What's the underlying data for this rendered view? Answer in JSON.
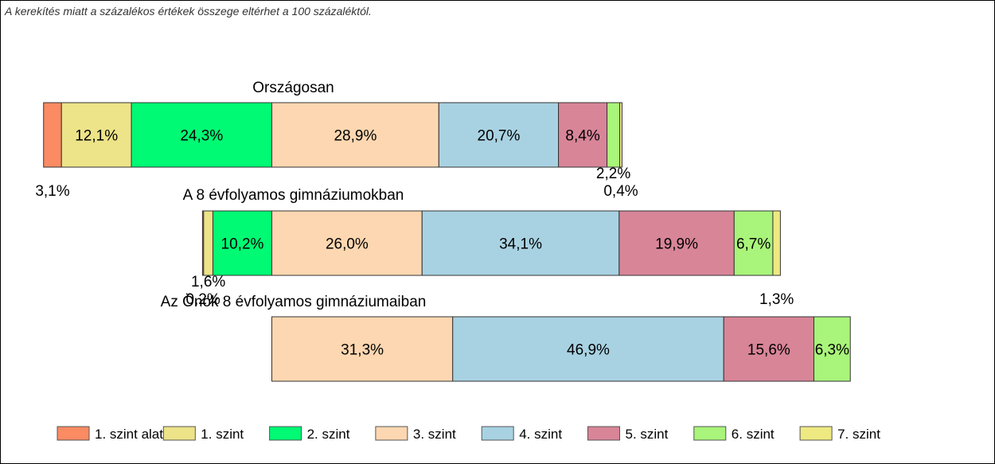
{
  "note": "A kerekítés miatt a  százalékos értékek összege eltérhet a 100 százaléktól.",
  "chart_data": {
    "type": "bar",
    "orientation": "horizontal-stacked-diverging",
    "legend_position": "bottom",
    "series": [
      {
        "name": "1. szint alatti",
        "color": "#FA8B63"
      },
      {
        "name": "1. szint",
        "color": "#EDE388"
      },
      {
        "name": "2. szint",
        "color": "#00FA74"
      },
      {
        "name": "3. szint",
        "color": "#FDD7B1"
      },
      {
        "name": "4. szint",
        "color": "#A8D2E2"
      },
      {
        "name": "5. szint",
        "color": "#D88598"
      },
      {
        "name": "6. szint",
        "color": "#A9F47A"
      },
      {
        "name": "7. szint",
        "color": "#EFE982"
      }
    ],
    "bars": [
      {
        "title": "Országosan",
        "values": [
          3.1,
          12.1,
          24.3,
          28.9,
          20.7,
          8.4,
          2.2,
          0.4
        ],
        "labels": [
          "3,1%",
          "12,1%",
          "24,3%",
          "28,9%",
          "20,7%",
          "8,4%",
          "2,2%",
          "0,4%"
        ]
      },
      {
        "title": "A 8 évfolyamos gimnáziumokban",
        "values": [
          0.2,
          1.6,
          10.2,
          26.0,
          34.1,
          19.9,
          6.7,
          1.3
        ],
        "labels": [
          "0,2%",
          "1,6%",
          "10,2%",
          "26,0%",
          "34,1%",
          "19,9%",
          "6,7%",
          "1,3%"
        ]
      },
      {
        "title": "Az Önök 8 évfolyamos gimnáziumaiban",
        "values": [
          0,
          0,
          0,
          31.3,
          46.9,
          15.6,
          6.3,
          0
        ],
        "labels": [
          "",
          "",
          "",
          "31,3%",
          "46,9%",
          "15,6%",
          "6,3%",
          ""
        ]
      }
    ]
  }
}
